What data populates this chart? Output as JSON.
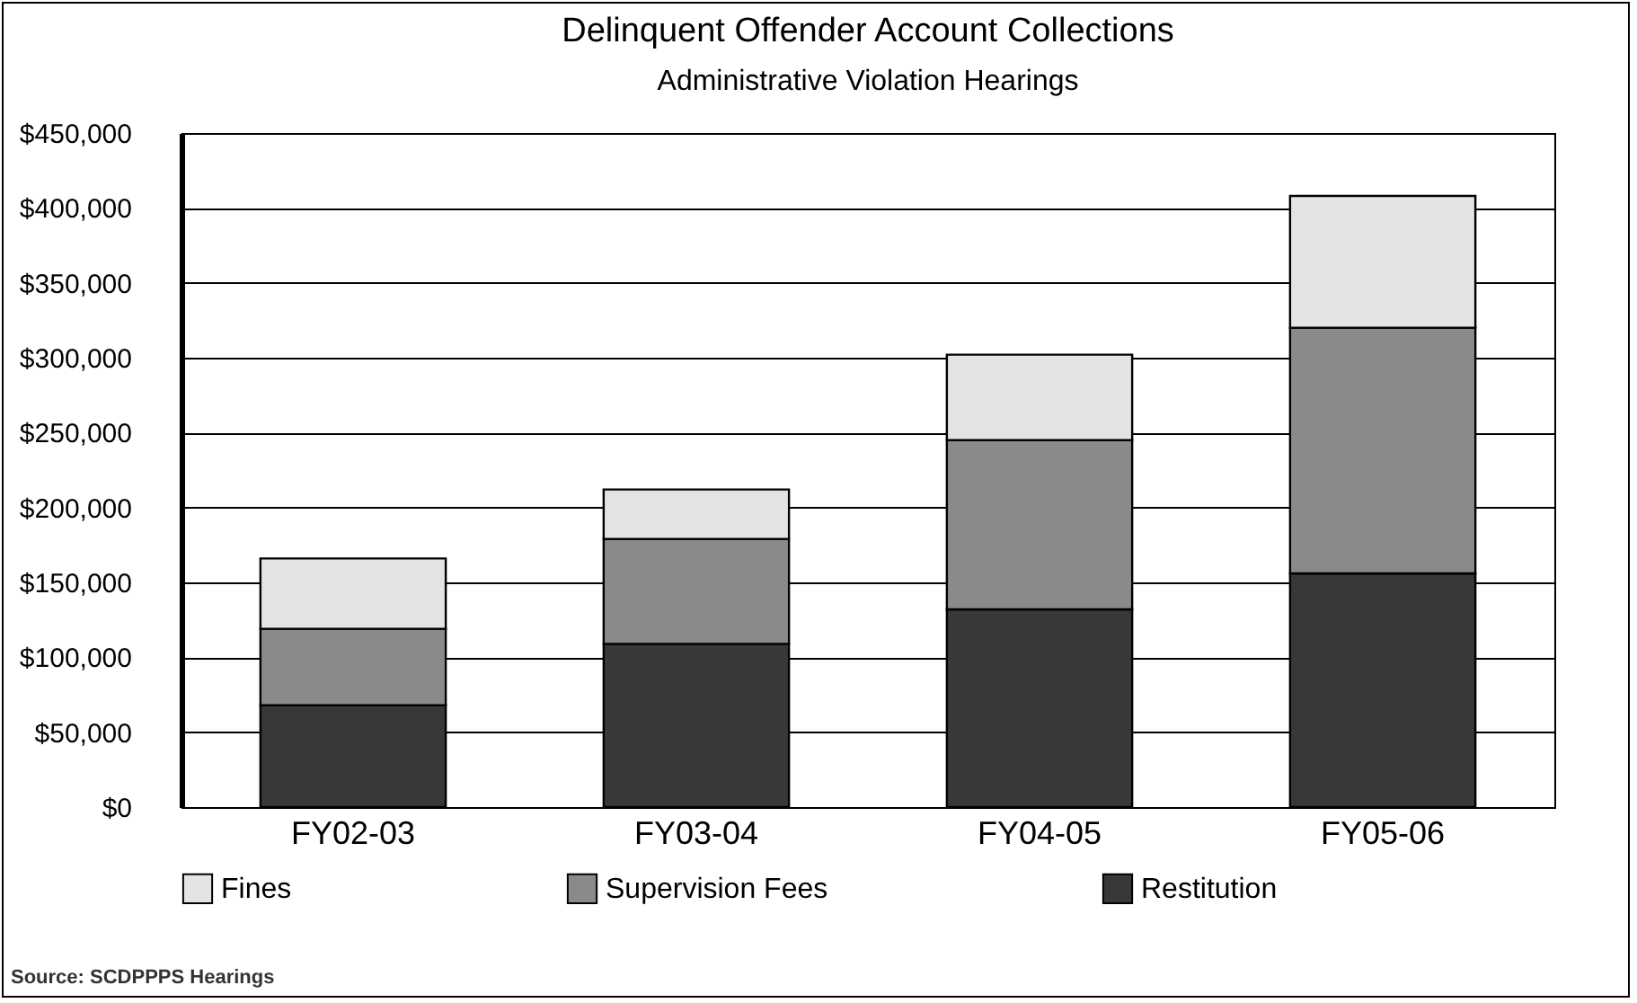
{
  "chart_data": {
    "type": "bar",
    "title": "Delinquent Offender Account Collections",
    "subtitle": "Administrative Violation Hearings",
    "categories": [
      "FY02-03",
      "FY03-04",
      "FY04-05",
      "FY05-06"
    ],
    "stacked": true,
    "series": [
      {
        "name": "Restitution",
        "color": "#383838",
        "values": [
          68000,
          109000,
          132000,
          156000
        ]
      },
      {
        "name": "Supervision Fees",
        "color": "#8a8a8a",
        "values": [
          51000,
          70000,
          113000,
          164000
        ]
      },
      {
        "name": "Fines",
        "color": "#e3e3e3",
        "values": [
          47000,
          33000,
          57000,
          88000
        ]
      }
    ],
    "ylim": [
      0,
      450000
    ],
    "yticks": [
      {
        "value": 0,
        "label": "$0"
      },
      {
        "value": 50000,
        "label": "$50,000"
      },
      {
        "value": 100000,
        "label": "$100,000"
      },
      {
        "value": 150000,
        "label": "$150,000"
      },
      {
        "value": 200000,
        "label": "$200,000"
      },
      {
        "value": 250000,
        "label": "$250,000"
      },
      {
        "value": 300000,
        "label": "$300,000"
      },
      {
        "value": 350000,
        "label": "$350,000"
      },
      {
        "value": 400000,
        "label": "$400,000"
      },
      {
        "value": 450000,
        "label": "$450,000"
      }
    ],
    "grid": "y",
    "legend": "bottom",
    "annotations": [
      "Source: SCDPPPS Hearings"
    ]
  }
}
